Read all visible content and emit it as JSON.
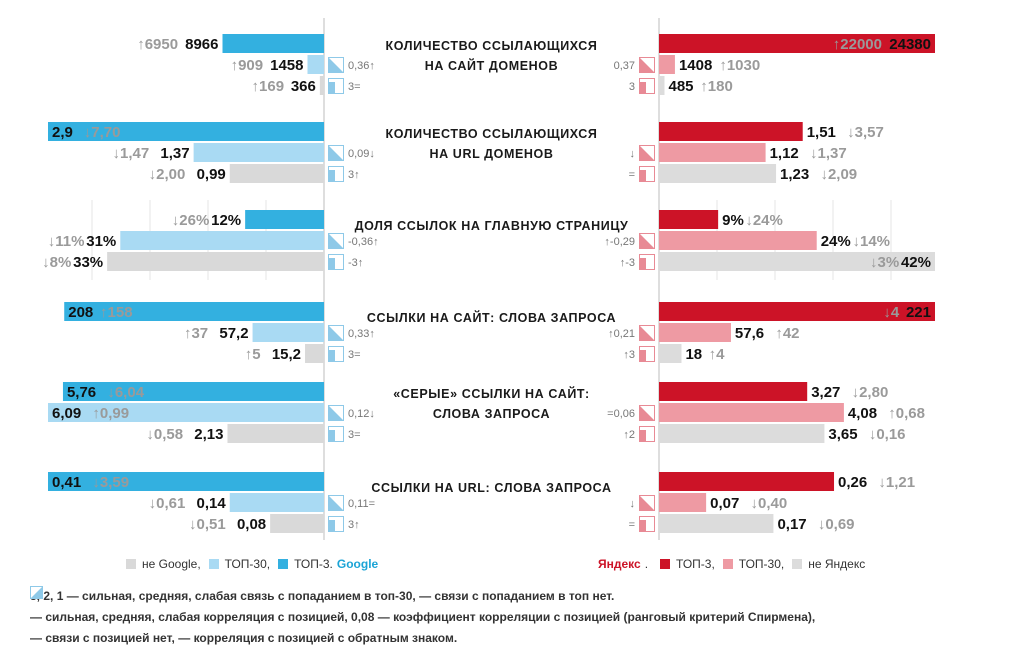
{
  "colors": {
    "google_top3": "#33b0e0",
    "google_top30": "#a9daf3",
    "google_other": "#d9d9d9",
    "yandex_top3": "#cc1327",
    "yandex_top30": "#ee9aa3",
    "yandex_other": "#dcdcdc",
    "cell_google": "#8ec9e8",
    "cell_yandex": "#e88a95"
  },
  "chart_data": {
    "type": "bar",
    "layout": "butterfly",
    "left_engine": "Google",
    "right_engine": "Яндекс",
    "tiers": [
      "ТОП-3",
      "ТОП-30",
      "не Google / не Яндекс"
    ],
    "sections": [
      {
        "title_lines": [
          "КОЛИЧЕСТВО ССЫЛАЮЩИХСЯ",
          "НА САЙТ ДОМЕНОВ"
        ],
        "google": [
          {
            "value": 8966,
            "label": "8966",
            "prev": "6950",
            "arrow": "up",
            "corr": ""
          },
          {
            "value": 1458,
            "label": "1458",
            "prev": "909",
            "arrow": "up",
            "corr": "0,36↑"
          },
          {
            "value": 366,
            "label": "366",
            "prev": "169",
            "arrow": "up",
            "corr": "3="
          }
        ],
        "yandex": [
          {
            "value": 24380,
            "label": "24380",
            "prev": "22000",
            "arrow": "up",
            "corr": ""
          },
          {
            "value": 1408,
            "label": "1408",
            "prev": "1030",
            "arrow": "up",
            "corr": "0,37"
          },
          {
            "value": 485,
            "label": "485",
            "prev": "180",
            "arrow": "up",
            "corr": "3"
          }
        ]
      },
      {
        "title_lines": [
          "КОЛИЧЕСТВО ССЫЛАЮЩИХСЯ",
          "НА URL ДОМЕНОВ"
        ],
        "google": [
          {
            "value": 2.9,
            "label": "2,9",
            "prev": "7,70",
            "arrow": "down",
            "corr": ""
          },
          {
            "value": 1.37,
            "label": "1,37",
            "prev": "1,47",
            "arrow": "down",
            "corr": "0,09↓"
          },
          {
            "value": 0.99,
            "label": "0,99",
            "prev": "2,00",
            "arrow": "down",
            "corr": "3↑"
          }
        ],
        "yandex": [
          {
            "value": 1.51,
            "label": "1,51",
            "prev": "3,57",
            "arrow": "down",
            "corr": ""
          },
          {
            "value": 1.12,
            "label": "1,12",
            "prev": "1,37",
            "arrow": "down",
            "corr": "↓"
          },
          {
            "value": 1.23,
            "label": "1,23",
            "prev": "2,09",
            "arrow": "down",
            "corr": "="
          }
        ]
      },
      {
        "title_lines": [
          "ДОЛЯ ССЫЛОК НА ГЛАВНУЮ СТРАНИЦУ"
        ],
        "google": [
          {
            "value": 12,
            "label": "12%",
            "prev": "26%",
            "arrow": "down",
            "corr": ""
          },
          {
            "value": 31,
            "label": "31%",
            "prev": "11%",
            "arrow": "down",
            "corr": "-0,36↑"
          },
          {
            "value": 33,
            "label": "33%",
            "prev": "8%",
            "arrow": "down",
            "corr": "-3↑"
          }
        ],
        "yandex": [
          {
            "value": 9,
            "label": "9%",
            "prev": "24%",
            "arrow": "down",
            "corr": ""
          },
          {
            "value": 24,
            "label": "24%",
            "prev": "14%",
            "arrow": "down",
            "corr": "↑-0,29"
          },
          {
            "value": 42,
            "label": "42%",
            "prev": "3%",
            "arrow": "down",
            "corr": "↑-3"
          }
        ]
      },
      {
        "title_lines": [
          "ССЫЛКИ НА САЙТ: СЛОВА ЗАПРОСА"
        ],
        "google": [
          {
            "value": 208,
            "label": "208",
            "prev": "158",
            "arrow": "up",
            "corr": ""
          },
          {
            "value": 57.2,
            "label": "57,2",
            "prev": "37",
            "arrow": "up",
            "corr": "0,33↑"
          },
          {
            "value": 15.2,
            "label": "15,2",
            "prev": "5",
            "arrow": "up",
            "corr": "3="
          }
        ],
        "yandex": [
          {
            "value": 221,
            "label": "221",
            "prev": "4",
            "arrow": "down",
            "corr": ""
          },
          {
            "value": 57.6,
            "label": "57,6",
            "prev": "42",
            "arrow": "up",
            "corr": "↑0,21"
          },
          {
            "value": 18,
            "label": "18",
            "prev": "4",
            "arrow": "up",
            "corr": "↑3"
          }
        ]
      },
      {
        "title_lines": [
          "«СЕРЫЕ» ССЫЛКИ НА САЙТ:",
          "СЛОВА ЗАПРОСА"
        ],
        "google": [
          {
            "value": 5.76,
            "label": "5,76",
            "prev": "6,04",
            "arrow": "down",
            "corr": ""
          },
          {
            "value": 6.09,
            "label": "6,09",
            "prev": "0,99",
            "arrow": "up",
            "corr": "0,12↓"
          },
          {
            "value": 2.13,
            "label": "2,13",
            "prev": "0,58",
            "arrow": "down",
            "corr": "3="
          }
        ],
        "yandex": [
          {
            "value": 3.27,
            "label": "3,27",
            "prev": "2,80",
            "arrow": "down",
            "corr": ""
          },
          {
            "value": 4.08,
            "label": "4,08",
            "prev": "0,68",
            "arrow": "up",
            "corr": "=0,06"
          },
          {
            "value": 3.65,
            "label": "3,65",
            "prev": "0,16",
            "arrow": "down",
            "corr": "↑2"
          }
        ]
      },
      {
        "title_lines": [
          "ССЫЛКИ НА URL: СЛОВА ЗАПРОСА"
        ],
        "google": [
          {
            "value": 0.41,
            "label": "0,41",
            "prev": "3,59",
            "arrow": "down",
            "corr": ""
          },
          {
            "value": 0.14,
            "label": "0,14",
            "prev": "0,61",
            "arrow": "down",
            "corr": "0,11="
          },
          {
            "value": 0.08,
            "label": "0,08",
            "prev": "0,51",
            "arrow": "down",
            "corr": "3↑"
          }
        ],
        "yandex": [
          {
            "value": 0.26,
            "label": "0,26",
            "prev": "1,21",
            "arrow": "down",
            "corr": ""
          },
          {
            "value": 0.07,
            "label": "0,07",
            "prev": "0,40",
            "arrow": "down",
            "corr": "↓"
          },
          {
            "value": 0.17,
            "label": "0,17",
            "prev": "0,69",
            "arrow": "down",
            "corr": "="
          }
        ]
      }
    ]
  },
  "legend": {
    "google": {
      "other": "не Google,",
      "top30": "ТОП-30,",
      "top3": "ТОП-3.",
      "brand": "Google"
    },
    "yandex": {
      "brand": "Яндекс",
      "dot": ".",
      "top3": "ТОП-3,",
      "top30": "ТОП-30,",
      "other": "не Яндекс"
    }
  },
  "notes": {
    "line1_a": "3,",
    "line1_b": "2,",
    "line1_c": "1 — сильная, средняя, слабая связь с попаданием в топ-30,",
    "line1_d": "— связи с попаданием в топ нет.",
    "line2": "— сильная, средняя, слабая корреляция с позицией, 0,08 — коэффициент корреляции с позицией (ранговый критерий Спирмена),",
    "line3_a": "— связи с позицией нет,",
    "line3_b": "— корреляция с позицией с обратным знаком."
  }
}
